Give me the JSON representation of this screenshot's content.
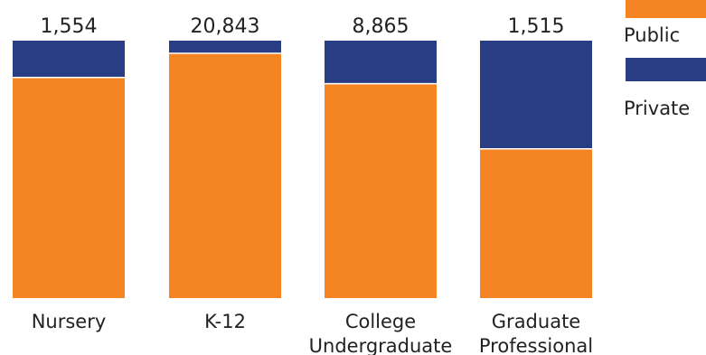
{
  "chart_data": {
    "type": "bar",
    "stacked": true,
    "normalized": true,
    "categories": [
      [
        "Nursery"
      ],
      [
        "K-12"
      ],
      [
        "College",
        "Undergraduate"
      ],
      [
        "Graduate",
        "Professional"
      ]
    ],
    "totals": [
      "1,554",
      "20,843",
      "8,865",
      "1,515"
    ],
    "series": [
      {
        "name": "Public",
        "color": "#f58522",
        "values": [
          0.857,
          0.951,
          0.833,
          0.58
        ]
      },
      {
        "name": "Private",
        "color": "#293d85",
        "values": [
          0.143,
          0.049,
          0.167,
          0.42
        ]
      }
    ],
    "ylim": [
      0,
      1
    ],
    "grid": false,
    "legend": "top-right"
  }
}
